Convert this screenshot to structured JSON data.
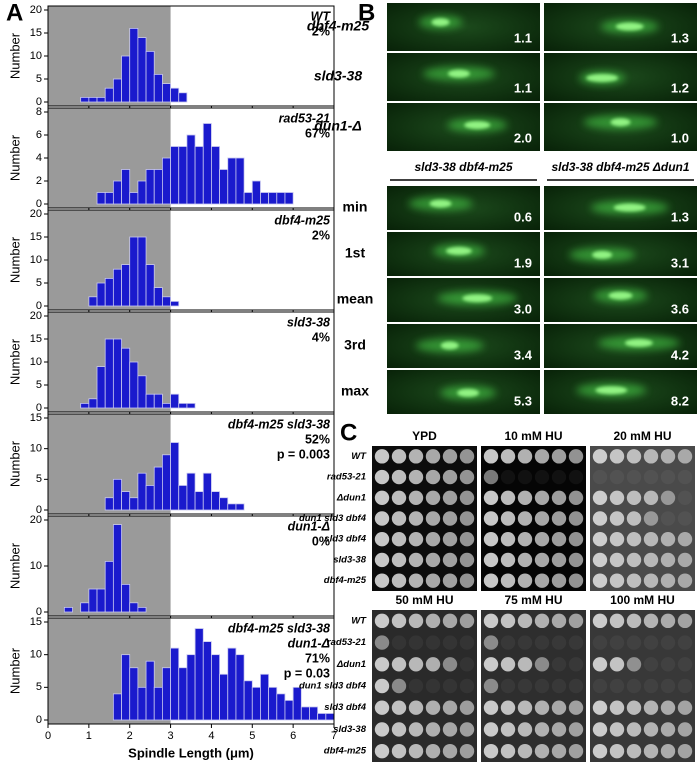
{
  "panel_a": {
    "label": "A"
  },
  "chart_data": [
    {
      "type": "histogram",
      "ylabel": "Number",
      "genotype": [
        "WT"
      ],
      "percent": "2%",
      "color": "#1a1acd",
      "bins": [
        0.8,
        1.0,
        1.2,
        1.4,
        1.6,
        1.8,
        2.0,
        2.2,
        2.4,
        2.6,
        2.8,
        3.0,
        3.2,
        3.4
      ],
      "values": [
        1,
        1,
        1,
        3,
        5,
        10,
        16,
        14,
        11,
        6,
        4,
        3,
        2
      ],
      "xlim": [
        0,
        7
      ],
      "ylim": [
        0,
        20
      ],
      "yticks": [
        0,
        5,
        10,
        15,
        20
      ],
      "shaded_range": [
        0,
        3
      ]
    },
    {
      "type": "histogram",
      "ylabel": "Number",
      "genotype": [
        "rad53-21"
      ],
      "percent": "67%",
      "color": "#1a1acd",
      "bins": [
        1.2,
        1.4,
        1.6,
        1.8,
        2.0,
        2.2,
        2.4,
        2.6,
        2.8,
        3.0,
        3.2,
        3.4,
        3.6,
        3.8,
        4.0,
        4.2,
        4.4,
        4.6,
        4.8,
        5.0,
        5.2,
        5.4,
        5.6,
        5.8,
        6.0
      ],
      "values": [
        1,
        1,
        2,
        3,
        1,
        2,
        3,
        3,
        4,
        5,
        5,
        6,
        5,
        7,
        5,
        3,
        4,
        4,
        1,
        2,
        1,
        1,
        1,
        1
      ],
      "xlim": [
        0,
        7
      ],
      "ylim": [
        0,
        8
      ],
      "yticks": [
        0,
        2,
        4,
        6,
        8
      ],
      "shaded_range": [
        0,
        3
      ]
    },
    {
      "type": "histogram",
      "ylabel": "Number",
      "genotype": [
        "dbf4-m25"
      ],
      "percent": "2%",
      "color": "#1a1acd",
      "bins": [
        1.0,
        1.2,
        1.4,
        1.6,
        1.8,
        2.0,
        2.2,
        2.4,
        2.6,
        2.8,
        3.0,
        3.2
      ],
      "values": [
        2,
        5,
        6,
        8,
        9,
        15,
        15,
        9,
        4,
        2,
        1
      ],
      "xlim": [
        0,
        7
      ],
      "ylim": [
        0,
        20
      ],
      "yticks": [
        0,
        5,
        10,
        15,
        20
      ],
      "shaded_range": [
        0,
        3
      ]
    },
    {
      "type": "histogram",
      "ylabel": "Number",
      "genotype": [
        "sld3-38"
      ],
      "percent": "4%",
      "color": "#1a1acd",
      "bins": [
        0.8,
        1.0,
        1.2,
        1.4,
        1.6,
        1.8,
        2.0,
        2.2,
        2.4,
        2.6,
        2.8,
        3.0,
        3.2,
        3.4,
        3.6
      ],
      "values": [
        1,
        2,
        9,
        15,
        15,
        13,
        10,
        7,
        3,
        3,
        1,
        3,
        1,
        1
      ],
      "xlim": [
        0,
        7
      ],
      "ylim": [
        0,
        20
      ],
      "yticks": [
        0,
        5,
        10,
        15,
        20
      ],
      "shaded_range": [
        0,
        3
      ]
    },
    {
      "type": "histogram",
      "ylabel": "Number",
      "genotype": [
        "dbf4-m25 sld3-38"
      ],
      "percent": "52%",
      "p_value": "p = 0.003",
      "color": "#1a1acd",
      "bins": [
        1.4,
        1.6,
        1.8,
        2.0,
        2.2,
        2.4,
        2.6,
        2.8,
        3.0,
        3.2,
        3.4,
        3.6,
        3.8,
        4.0,
        4.2,
        4.4,
        4.6,
        4.8
      ],
      "values": [
        2,
        5,
        3,
        2,
        6,
        4,
        7,
        9,
        11,
        4,
        6,
        3,
        6,
        3,
        2,
        1,
        1
      ],
      "xlim": [
        0,
        7
      ],
      "ylim": [
        0,
        15
      ],
      "yticks": [
        0,
        5,
        10,
        15
      ],
      "shaded_range": [
        0,
        3
      ]
    },
    {
      "type": "histogram",
      "ylabel": "Number",
      "genotype": [
        "dun1-Δ"
      ],
      "percent": "0%",
      "color": "#1a1acd",
      "bins": [
        0.4,
        0.6,
        0.8,
        1.0,
        1.2,
        1.4,
        1.6,
        1.8,
        2.0,
        2.2,
        2.4
      ],
      "values": [
        1,
        0,
        2,
        5,
        5,
        11,
        19,
        6,
        2,
        1
      ],
      "xlim": [
        0,
        7
      ],
      "ylim": [
        0,
        20
      ],
      "yticks": [
        0,
        10,
        20
      ],
      "shaded_range": [
        0,
        3
      ]
    },
    {
      "type": "histogram",
      "ylabel": "Number",
      "genotype": [
        "dbf4-m25 sld3-38",
        "dun1-Δ"
      ],
      "percent": "71%",
      "p_value": "p = 0.03",
      "color": "#1a1acd",
      "bins": [
        1.6,
        1.8,
        2.0,
        2.2,
        2.4,
        2.6,
        2.8,
        3.0,
        3.2,
        3.4,
        3.6,
        3.8,
        4.0,
        4.2,
        4.4,
        4.6,
        4.8,
        5.0,
        5.2,
        5.4,
        5.6,
        5.8,
        6.0,
        6.2,
        6.4,
        6.6,
        6.8,
        7.0
      ],
      "values": [
        4,
        10,
        8,
        5,
        9,
        5,
        8,
        11,
        8,
        10,
        14,
        12,
        10,
        7,
        11,
        10,
        6,
        5,
        7,
        5,
        4,
        3,
        5,
        2,
        2,
        1,
        1
      ],
      "xlim": [
        0,
        7
      ],
      "ylim": [
        0,
        15
      ],
      "yticks": [
        0,
        5,
        10,
        15
      ],
      "shaded_range": [
        0,
        3
      ],
      "xticks": [
        0,
        1,
        2,
        3,
        4,
        5,
        6,
        7
      ],
      "xlabel": "Spindle Length (μm)"
    }
  ],
  "panel_b": {
    "label": "B",
    "top_rows": [
      {
        "label": "dbf4-m25",
        "values": [
          "1.1",
          "1.3"
        ]
      },
      {
        "label": "sld3-38",
        "values": [
          "1.1",
          "1.2"
        ]
      },
      {
        "label": "dun1-Δ",
        "values": [
          "2.0",
          "1.0"
        ]
      }
    ],
    "columns": [
      "sld3-38 dbf4-m25",
      "sld3-38 dbf4-m25 Δdun1"
    ],
    "rows": [
      {
        "label": "min",
        "values": [
          "0.6",
          "1.3"
        ]
      },
      {
        "label": "1st",
        "values": [
          "1.9",
          "3.1"
        ]
      },
      {
        "label": "mean",
        "values": [
          "3.0",
          "3.6"
        ]
      },
      {
        "label": "3rd",
        "values": [
          "3.4",
          "4.2"
        ]
      },
      {
        "label": "max",
        "values": [
          "5.3",
          "8.2"
        ]
      }
    ]
  },
  "panel_c": {
    "label": "C",
    "blocks": [
      {
        "conditions": [
          "YPD",
          "10 mM HU",
          "20 mM HU"
        ],
        "strains": [
          "WT",
          "rad53-21",
          "Δdun1",
          "dun1 sld3 dbf4",
          "sld3 dbf4",
          "sld3-38",
          "dbf4-m25"
        ]
      },
      {
        "conditions": [
          "50 mM HU",
          "75 mM HU",
          "100 mM HU"
        ],
        "strains": [
          "WT",
          "rad53-21",
          "Δdun1",
          "dun1 sld3 dbf4",
          "sld3 dbf4",
          "sld3-38",
          "dbf4-m25"
        ]
      }
    ]
  }
}
